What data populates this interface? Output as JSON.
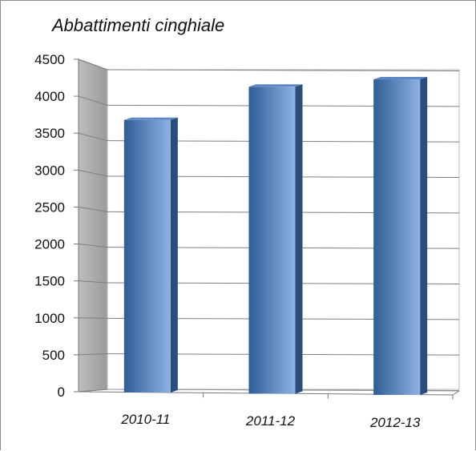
{
  "chart_data": {
    "type": "bar",
    "title": "Abbattimenti cinghiale",
    "xlabel": "",
    "ylabel": "",
    "categories": [
      "2010-11",
      "2011-12",
      "2012-13"
    ],
    "values": [
      3700,
      4150,
      4250
    ],
    "ylim": [
      0,
      4500
    ],
    "yticks": [
      0,
      500,
      1000,
      1500,
      2000,
      2500,
      3000,
      3500,
      4000,
      4500
    ],
    "grid": true,
    "legend": "none",
    "style": "3d-column",
    "colors": {
      "bar_front_dark": "#2f5d97",
      "bar_front_light": "#8fb2e3",
      "bar_side": "#2b4d79",
      "bar_top": "#5f87c6",
      "side_wall": "#a8a8a8",
      "gridline": "#7f7f7f"
    }
  }
}
